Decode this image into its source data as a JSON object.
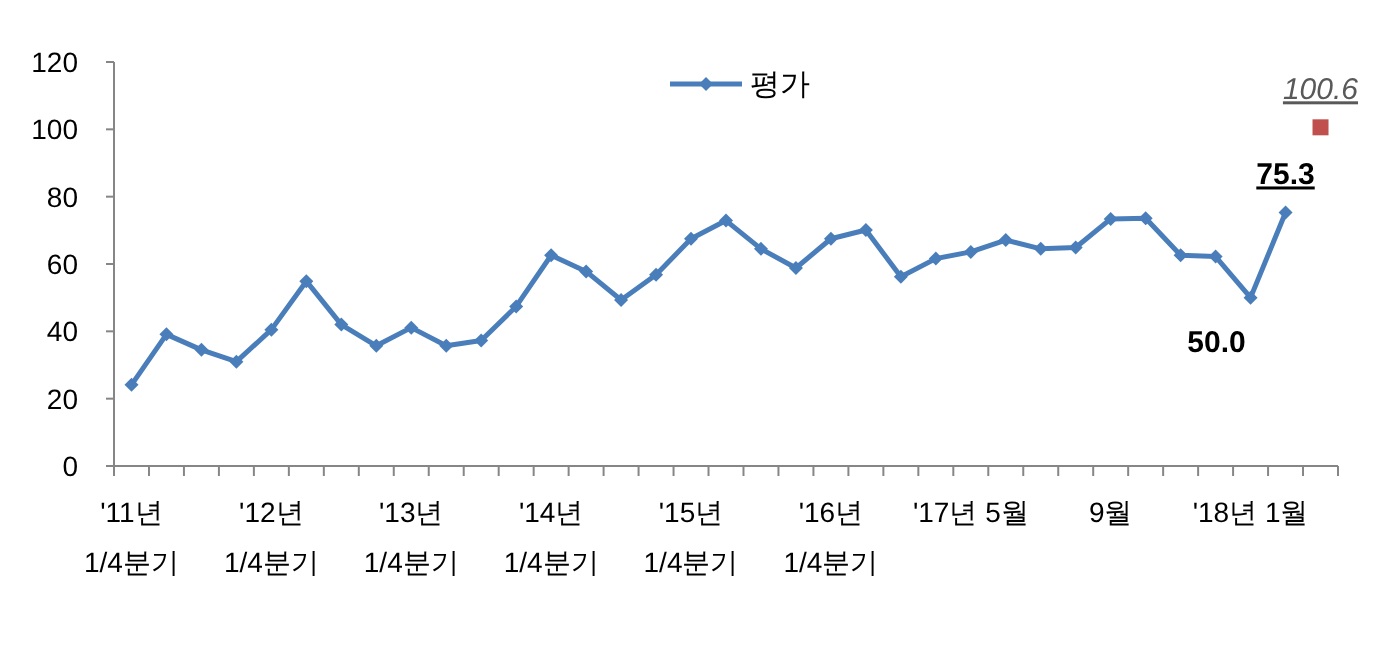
{
  "chart_data": {
    "type": "line",
    "categories": [
      "'11년\n1/4분기",
      null,
      null,
      null,
      "'12년\n1/4분기",
      null,
      null,
      null,
      "'13년\n1/4분기",
      null,
      null,
      null,
      "'14년\n1/4분기",
      null,
      null,
      null,
      "'15년\n1/4분기",
      null,
      null,
      null,
      "'16년\n1/4분기",
      null,
      null,
      null,
      "'17년 5월",
      null,
      null,
      null,
      "9월",
      null,
      null,
      null,
      "'18년 1월",
      null,
      null
    ],
    "series": [
      {
        "name": "평가",
        "color": "#4a7ebb",
        "marker": "diamond",
        "values": [
          24.1,
          39.1,
          34.5,
          31,
          40.5,
          54.9,
          42,
          35.7,
          41.1,
          35.7,
          37.3,
          47.4,
          62.6,
          57.8,
          49.3,
          56.8,
          67.5,
          72.9,
          64.5,
          58.8,
          67.5,
          70.1,
          56.2,
          61.6,
          63.6,
          67.1,
          64.5,
          64.9,
          73.4,
          73.6,
          62.6,
          62.2,
          50.0,
          75.3,
          null
        ],
        "value_labels": [
          null,
          null,
          null,
          null,
          null,
          null,
          null,
          null,
          null,
          null,
          null,
          null,
          null,
          null,
          null,
          null,
          null,
          null,
          null,
          null,
          null,
          null,
          null,
          null,
          null,
          null,
          null,
          null,
          null,
          null,
          null,
          null,
          "50.0",
          "75.3",
          null
        ]
      },
      {
        "type": "scatter",
        "color": "#c0504d",
        "marker": "square",
        "values": [
          null,
          null,
          null,
          null,
          null,
          null,
          null,
          null,
          null,
          null,
          null,
          null,
          null,
          null,
          null,
          null,
          null,
          null,
          null,
          null,
          null,
          null,
          null,
          null,
          null,
          null,
          null,
          null,
          null,
          null,
          null,
          null,
          null,
          null,
          100.6
        ],
        "value_labels": [
          null,
          null,
          null,
          null,
          null,
          null,
          null,
          null,
          null,
          null,
          null,
          null,
          null,
          null,
          null,
          null,
          null,
          null,
          null,
          null,
          null,
          null,
          null,
          null,
          null,
          null,
          null,
          null,
          null,
          null,
          null,
          null,
          null,
          null,
          "100.6"
        ]
      }
    ],
    "ylim": [
      0,
      120
    ],
    "yticks": [
      0,
      20,
      40,
      60,
      80,
      100,
      120
    ],
    "legend": "top"
  }
}
